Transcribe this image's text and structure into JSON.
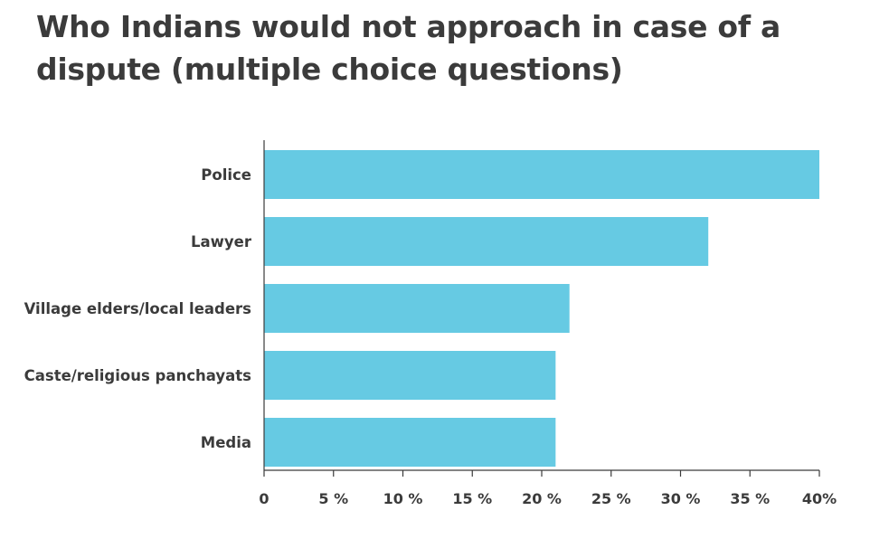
{
  "chart_data": {
    "type": "bar",
    "orientation": "horizontal",
    "title": "Who Indians would not approach in case of a dispute (multiple choice questions)",
    "categories": [
      "Police",
      "Lawyer",
      "Village elders/local leaders",
      "Caste/religious panchayats",
      "Media"
    ],
    "values": [
      40,
      32,
      22,
      21,
      21
    ],
    "unit": "%",
    "xlim": [
      0,
      40
    ],
    "x_ticks": [
      0,
      5,
      10,
      15,
      20,
      25,
      30,
      35,
      40
    ],
    "x_tick_labels": [
      "0",
      "5 %",
      "10 %",
      "15 %",
      "20 %",
      "25 %",
      "30 %",
      "35 %",
      "40%"
    ],
    "grid": false,
    "legend": "none",
    "bar_color": "#66cae3",
    "text_color": "#3b3b3b"
  }
}
